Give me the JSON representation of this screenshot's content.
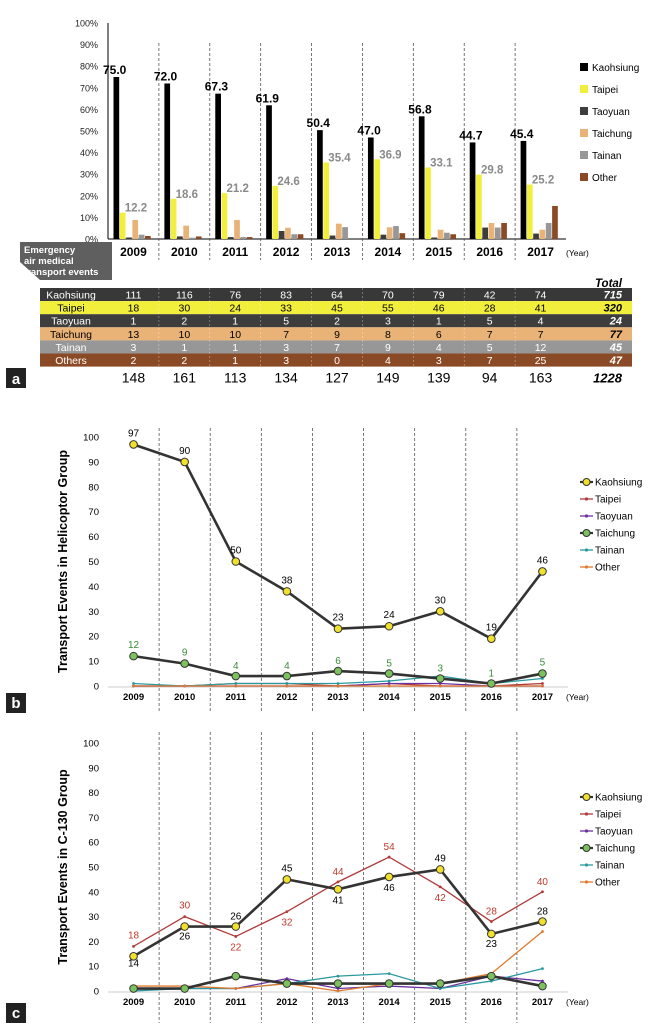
{
  "chart_data": [
    {
      "panel_label": "a",
      "type": "bar",
      "categories": [
        "2009",
        "2010",
        "2011",
        "2012",
        "2013",
        "2014",
        "2015",
        "2016",
        "2017"
      ],
      "x_unit": "(Year)",
      "y_ticks": [
        "0%",
        "10%",
        "20%",
        "30%",
        "40%",
        "50%",
        "60%",
        "70%",
        "80%",
        "90%",
        "100%"
      ],
      "ylim": [
        0,
        100
      ],
      "series": [
        {
          "name": "Kaohsiung",
          "color": "#000000",
          "values": [
            75.0,
            72.0,
            67.3,
            61.9,
            50.4,
            47.0,
            56.8,
            44.7,
            45.4
          ]
        },
        {
          "name": "Taipei",
          "color": "#f2ee3c",
          "values": [
            12.2,
            18.6,
            21.2,
            24.6,
            35.4,
            36.9,
            33.1,
            29.8,
            25.2
          ]
        },
        {
          "name": "Taoyuan",
          "color": "#3d3d3d",
          "values": [
            0.7,
            1.2,
            0.9,
            3.7,
            1.6,
            2.0,
            0.7,
            5.3,
            2.5
          ]
        },
        {
          "name": "Taichung",
          "color": "#e9b377",
          "values": [
            8.8,
            6.2,
            8.8,
            5.2,
            7.1,
            5.4,
            4.3,
            7.4,
            4.3
          ]
        },
        {
          "name": "Tainan",
          "color": "#979797",
          "values": [
            2.0,
            0.6,
            0.9,
            2.2,
            5.5,
            6.0,
            2.9,
            5.3,
            7.4
          ]
        },
        {
          "name": "Other",
          "color": "#8b4a26",
          "values": [
            1.4,
            1.2,
            0.9,
            2.2,
            0.0,
            2.7,
            2.2,
            7.4,
            15.3
          ]
        }
      ],
      "labeled_series": {
        "Kaohsiung": [
          "75.0",
          "72.0",
          "67.3",
          "61.9",
          "50.4",
          "47.0",
          "56.8",
          "44.7",
          "45.4"
        ],
        "Taipei": [
          "12.2",
          "18.6",
          "21.2",
          "24.6",
          "35.4",
          "36.9",
          "33.1",
          "29.8",
          "25.2"
        ]
      },
      "table": {
        "header_label": "Emergency air medical transport events",
        "total_header": "Total",
        "rows": [
          {
            "name": "Kaohsiung",
            "values": [
              "111",
              "116",
              "76",
              "83",
              "64",
              "70",
              "79",
              "42",
              "74"
            ],
            "total": "715",
            "bg": "#383838",
            "fg": "#ffffff"
          },
          {
            "name": "Taipei",
            "values": [
              "18",
              "30",
              "24",
              "33",
              "45",
              "55",
              "46",
              "28",
              "41"
            ],
            "total": "320",
            "bg": "#f2ee3c",
            "fg": "#000000"
          },
          {
            "name": "Taoyuan",
            "values": [
              "1",
              "2",
              "1",
              "5",
              "2",
              "3",
              "1",
              "5",
              "4"
            ],
            "total": "24",
            "bg": "#3d3d3d",
            "fg": "#ffffff"
          },
          {
            "name": "Taichung",
            "values": [
              "13",
              "10",
              "10",
              "7",
              "9",
              "8",
              "6",
              "7",
              "7"
            ],
            "total": "77",
            "bg": "#e9b377",
            "fg": "#000000"
          },
          {
            "name": "Tainan",
            "values": [
              "3",
              "1",
              "1",
              "3",
              "7",
              "9",
              "4",
              "5",
              "12"
            ],
            "total": "45",
            "bg": "#979797",
            "fg": "#ffffff"
          },
          {
            "name": "Others",
            "values": [
              "2",
              "2",
              "1",
              "3",
              "0",
              "4",
              "3",
              "7",
              "25"
            ],
            "total": "47",
            "bg": "#8b4a26",
            "fg": "#ffffff"
          }
        ],
        "totals": [
          "148",
          "161",
          "113",
          "134",
          "127",
          "149",
          "139",
          "94",
          "163"
        ],
        "grand_total": "1228"
      }
    },
    {
      "panel_label": "b",
      "type": "line",
      "ylabel": "Transport Events in Helicoptor Group",
      "x": [
        "2009",
        "2010",
        "2011",
        "2012",
        "2013",
        "2014",
        "2015",
        "2016",
        "2017"
      ],
      "x_unit": "(Year)",
      "ylim": [
        0,
        100
      ],
      "y_ticks": [
        "0",
        "10",
        "20",
        "30",
        "40",
        "50",
        "60",
        "70",
        "80",
        "90",
        "100"
      ],
      "series": [
        {
          "name": "Kaohsiung",
          "color": "#333333",
          "marker": "#f2e12c",
          "values": [
            97,
            90,
            50,
            38,
            23,
            24,
            30,
            19,
            46
          ],
          "labels": [
            "97",
            "90",
            "50",
            "38",
            "23",
            "24",
            "30",
            "19",
            "46"
          ],
          "label_color": "#000000"
        },
        {
          "name": "Taipei",
          "color": "#b03a3a",
          "values": [
            0,
            0,
            1,
            1,
            0,
            1,
            0,
            0,
            1
          ]
        },
        {
          "name": "Taoyuan",
          "color": "#6a2fa0",
          "values": [
            0,
            0,
            0,
            0,
            0,
            1,
            1,
            0,
            0
          ]
        },
        {
          "name": "Taichung",
          "color": "#333333",
          "marker": "#7cc25c",
          "values": [
            12,
            9,
            4,
            4,
            6,
            5,
            3,
            1,
            5
          ],
          "labels": [
            "12",
            "9",
            "4",
            "4",
            "6",
            "5",
            "3",
            "1",
            "5"
          ],
          "label_color": "#3a8a3a"
        },
        {
          "name": "Tainan",
          "color": "#2a9aa0",
          "values": [
            1,
            0,
            1,
            1,
            1,
            2,
            4,
            1,
            3
          ]
        },
        {
          "name": "Other",
          "color": "#e07a2e",
          "values": [
            0,
            0,
            0,
            0,
            0,
            0,
            0,
            0,
            0
          ]
        }
      ]
    },
    {
      "panel_label": "c",
      "type": "line",
      "ylabel": "Transport Events in C-130 Group",
      "x": [
        "2009",
        "2010",
        "2011",
        "2012",
        "2013",
        "2014",
        "2015",
        "2016",
        "2017"
      ],
      "x_unit": "(Year)",
      "ylim": [
        0,
        100
      ],
      "y_ticks": [
        "0",
        "10",
        "20",
        "30",
        "40",
        "50",
        "60",
        "70",
        "80",
        "90",
        "100"
      ],
      "series": [
        {
          "name": "Kaohsiung",
          "color": "#333333",
          "marker": "#f2e12c",
          "values": [
            14,
            26,
            26,
            45,
            41,
            46,
            49,
            23,
            28
          ],
          "labels": [
            "14",
            "26",
            "26",
            "45",
            "41",
            "46",
            "49",
            "23",
            "28"
          ],
          "label_color": "#000000"
        },
        {
          "name": "Taipei",
          "color": "#b03a3a",
          "values": [
            18,
            30,
            22,
            32,
            44,
            54,
            42,
            28,
            40
          ],
          "labels": [
            "18",
            "30",
            "22",
            "32",
            "44",
            "54",
            "42",
            "28",
            "40"
          ],
          "label_color": "#c0392b"
        },
        {
          "name": "Taoyuan",
          "color": "#6a2fa0",
          "values": [
            1,
            1,
            1,
            5,
            1,
            2,
            1,
            6,
            4
          ]
        },
        {
          "name": "Taichung",
          "color": "#333333",
          "marker": "#7cc25c",
          "values": [
            1,
            1,
            6,
            3,
            3,
            3,
            3,
            6,
            2
          ]
        },
        {
          "name": "Tainan",
          "color": "#2a9aa0",
          "values": [
            0,
            1,
            1,
            3,
            6,
            7,
            1,
            4,
            9
          ]
        },
        {
          "name": "Other",
          "color": "#e07a2e",
          "values": [
            2,
            2,
            1,
            3,
            0,
            3,
            3,
            7,
            24
          ]
        }
      ]
    }
  ]
}
